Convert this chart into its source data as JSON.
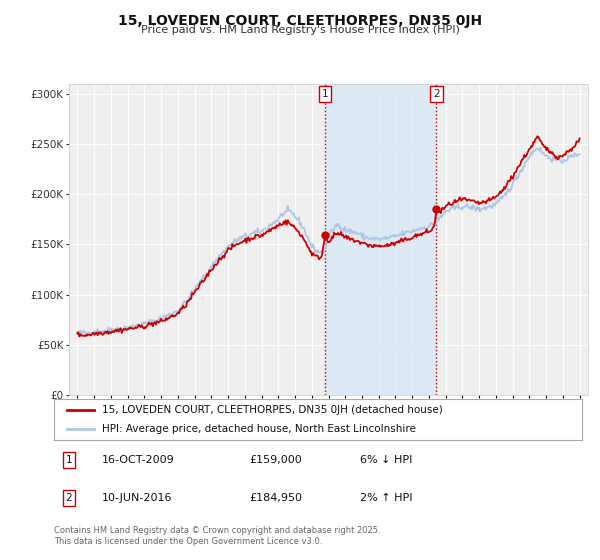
{
  "title1": "15, LOVEDEN COURT, CLEETHORPES, DN35 0JH",
  "title2": "Price paid vs. HM Land Registry's House Price Index (HPI)",
  "background_color": "#ffffff",
  "plot_bg_color": "#efefef",
  "grid_color": "#ffffff",
  "hpi_color": "#aec6e8",
  "price_color": "#cc0000",
  "shade_color": "#d6e8f7",
  "transaction1": {
    "date_num": 2009.79,
    "price": 159000,
    "label": "1",
    "date_str": "16-OCT-2009",
    "price_str": "£159,000",
    "change": "6% ↓ HPI"
  },
  "transaction2": {
    "date_num": 2016.44,
    "price": 184950,
    "label": "2",
    "date_str": "10-JUN-2016",
    "price_str": "£184,950",
    "change": "2% ↑ HPI"
  },
  "legend_line1": "15, LOVEDEN COURT, CLEETHORPES, DN35 0JH (detached house)",
  "legend_line2": "HPI: Average price, detached house, North East Lincolnshire",
  "footnote": "Contains HM Land Registry data © Crown copyright and database right 2025.\nThis data is licensed under the Open Government Licence v3.0.",
  "ylim": [
    0,
    310000
  ],
  "xlim": [
    1994.5,
    2025.5
  ],
  "yticks": [
    0,
    50000,
    100000,
    150000,
    200000,
    250000,
    300000
  ]
}
